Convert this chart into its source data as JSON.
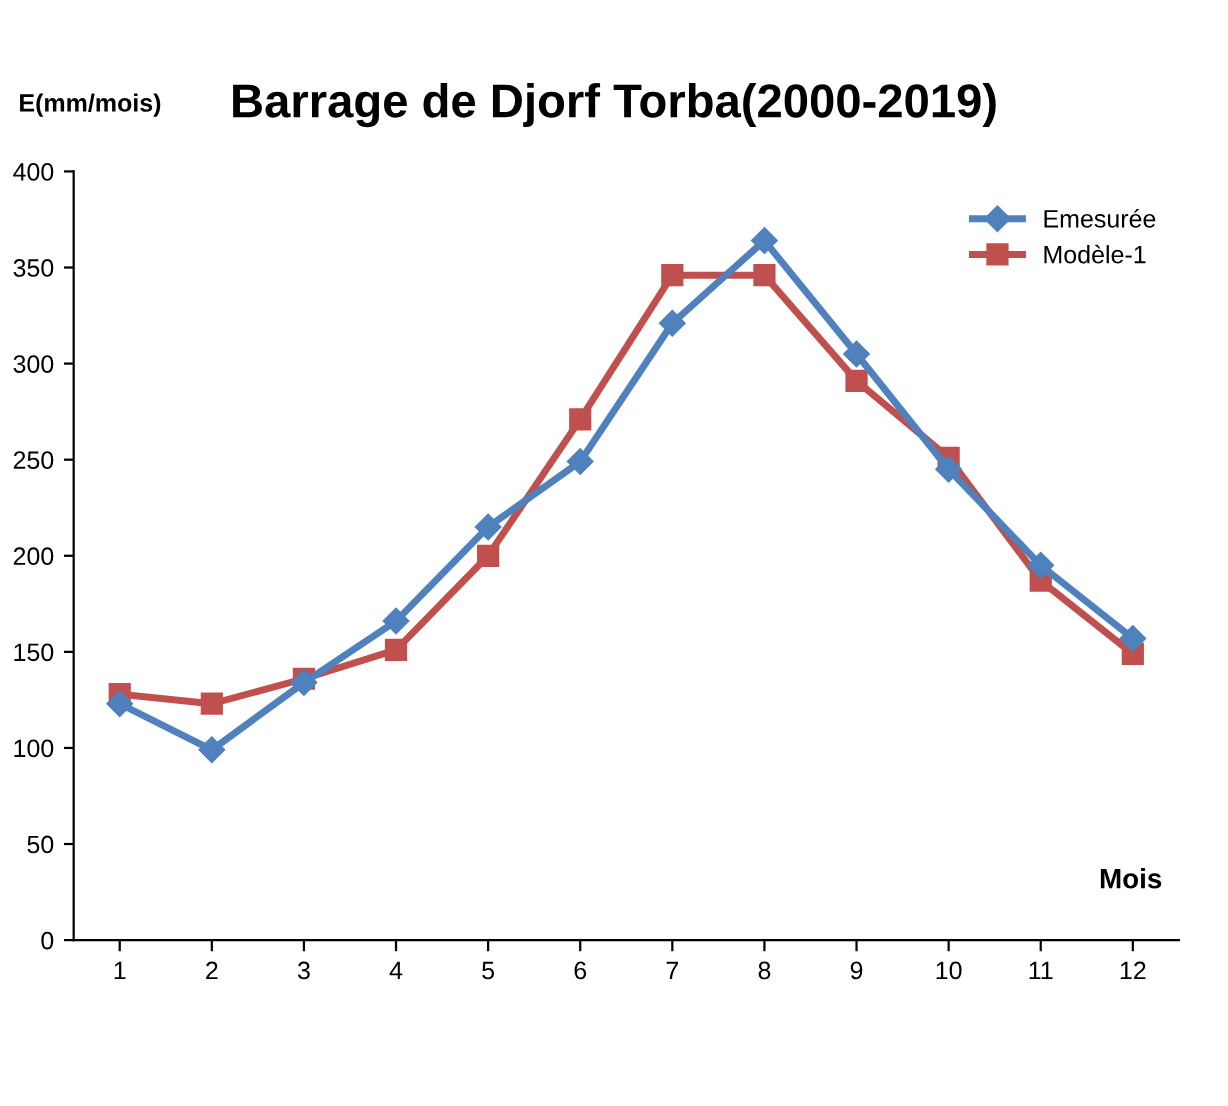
{
  "chart_data": {
    "type": "line",
    "title": "Barrage de Djorf Torba(2000-2019)",
    "ylabel": "E(mm/mois)",
    "xlabel": "Mois",
    "categories": [
      "1",
      "2",
      "3",
      "4",
      "5",
      "6",
      "7",
      "8",
      "9",
      "10",
      "11",
      "12"
    ],
    "series": [
      {
        "name": "Emesurée",
        "color": "#4f81bd",
        "marker": "diamond",
        "values": [
          123,
          99,
          134,
          166,
          215,
          249,
          321,
          364,
          305,
          245,
          195,
          157
        ]
      },
      {
        "name": "Modèle-1",
        "color": "#c0504d",
        "marker": "square",
        "values": [
          128,
          123,
          136,
          151,
          200,
          271,
          346,
          346,
          291,
          251,
          187,
          149
        ]
      }
    ],
    "ylim": [
      0,
      400
    ],
    "yticks": [
      0,
      50,
      100,
      150,
      200,
      250,
      300,
      350,
      400
    ],
    "grid": false,
    "legend": "top right",
    "line_style": "solid"
  }
}
